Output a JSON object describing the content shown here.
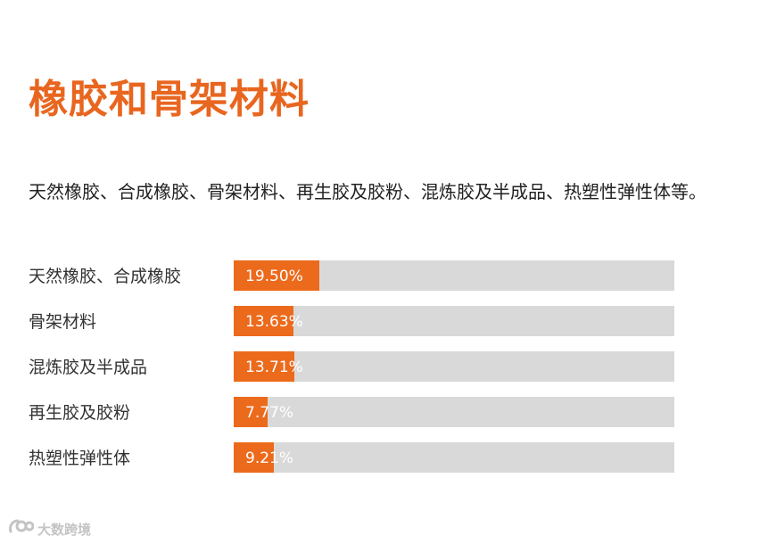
{
  "title": "橡胶和骨架材料",
  "subtitle": "天然橡胶、合成橡胶、骨架材料、再生胶及胶粉、混炼胶及半成品、热塑性弹性体等。",
  "watermark": {
    "text": "大数跨境",
    "icon": "brand-logo-icon"
  },
  "colors": {
    "accent": "#e8661f",
    "bar_fill": "#ec6a1c",
    "bar_track": "#d9d9d9"
  },
  "chart_data": {
    "type": "bar",
    "orientation": "horizontal",
    "title": "",
    "xlabel": "",
    "ylabel": "",
    "xlim": [
      0,
      100
    ],
    "categories": [
      "天然橡胶、合成橡胶",
      "骨架材料",
      "混炼胶及半成品",
      "再生胶及胶粉",
      "热塑性弹性体"
    ],
    "values": [
      19.5,
      13.63,
      13.71,
      7.77,
      9.21
    ],
    "value_labels": [
      "19.50%",
      "13.63%",
      "13.71%",
      "7.77%",
      "9.21%"
    ],
    "grid": false
  }
}
